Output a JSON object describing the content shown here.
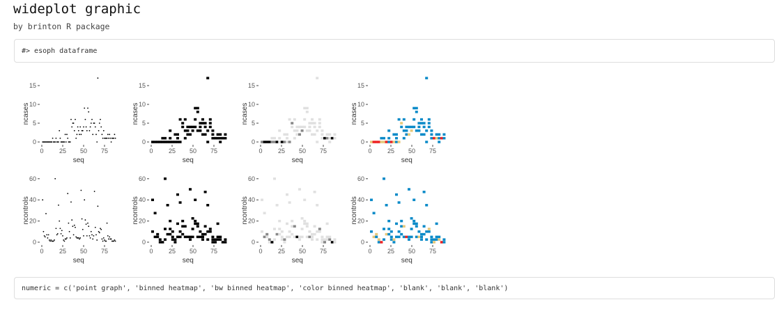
{
  "title": "wideplot graphic",
  "subtitle": "by brinton R package",
  "code_top": "#> esoph dataframe",
  "code_bottom": "numeric = c('point graph', 'binned heatmap', 'bw binned heatmap', 'color binned heatmap', 'blank', 'blank', 'blank')",
  "colors": {
    "point": "#000000",
    "bw_low": "#e0e0e0",
    "bw_mid": "#888888",
    "bw_high": "#000000",
    "color_low": "#0a8ac8",
    "color_mid": "#e6c87a",
    "color_high": "#ee2222"
  },
  "chart_data": [
    {
      "type": "scatter",
      "variant": "point graph",
      "xlabel": "seq",
      "ylabel": "ncases",
      "x_ticks": [
        "0",
        "25",
        "50",
        "75"
      ],
      "y_ticks": [
        "0",
        "5",
        "10",
        "15"
      ],
      "xlim": [
        0,
        88
      ],
      "ylim": [
        0,
        17
      ],
      "grid": false
    },
    {
      "type": "heatmap",
      "variant": "binned heatmap",
      "xlabel": "seq",
      "ylabel": "ncases",
      "x_ticks": [
        "0",
        "25",
        "50",
        "75"
      ],
      "y_ticks": [
        "0",
        "5",
        "10",
        "15"
      ]
    },
    {
      "type": "heatmap",
      "variant": "bw binned heatmap",
      "xlabel": "seq",
      "ylabel": "ncases",
      "x_ticks": [
        "0",
        "25",
        "50",
        "75"
      ],
      "y_ticks": [
        "0",
        "5",
        "10",
        "15"
      ]
    },
    {
      "type": "heatmap",
      "variant": "color binned heatmap",
      "xlabel": "seq",
      "ylabel": "ncases",
      "x_ticks": [
        "0",
        "25",
        "50",
        "75"
      ],
      "y_ticks": [
        "0",
        "5",
        "10",
        "15"
      ]
    },
    {
      "type": "scatter",
      "variant": "point graph",
      "xlabel": "seq",
      "ylabel": "ncontrols",
      "x_ticks": [
        "0",
        "25",
        "50",
        "75"
      ],
      "y_ticks": [
        "0",
        "20",
        "40",
        "60"
      ],
      "xlim": [
        0,
        88
      ],
      "ylim": [
        0,
        60
      ],
      "grid": false
    },
    {
      "type": "heatmap",
      "variant": "binned heatmap",
      "xlabel": "seq",
      "ylabel": "ncontrols",
      "x_ticks": [
        "0",
        "25",
        "50",
        "75"
      ],
      "y_ticks": [
        "0",
        "20",
        "40",
        "60"
      ]
    },
    {
      "type": "heatmap",
      "variant": "bw binned heatmap",
      "xlabel": "seq",
      "ylabel": "ncontrols",
      "x_ticks": [
        "0",
        "25",
        "50",
        "75"
      ],
      "y_ticks": [
        "0",
        "20",
        "40",
        "60"
      ]
    },
    {
      "type": "heatmap",
      "variant": "color binned heatmap",
      "xlabel": "seq",
      "ylabel": "ncontrols",
      "x_ticks": [
        "0",
        "25",
        "50",
        "75"
      ],
      "y_ticks": [
        "0",
        "20",
        "40",
        "60"
      ]
    }
  ],
  "esoph": {
    "ncases": [
      0,
      0,
      0,
      0,
      0,
      0,
      0,
      0,
      0,
      0,
      0,
      0,
      1,
      0,
      0,
      0,
      1,
      0,
      0,
      0,
      3,
      1,
      0,
      0,
      0,
      0,
      0,
      2,
      0,
      2,
      1,
      0,
      0,
      0,
      6,
      4,
      5,
      5,
      3,
      6,
      1,
      2,
      4,
      3,
      2,
      4,
      2,
      3,
      3,
      4,
      9,
      6,
      4,
      3,
      9,
      8,
      3,
      4,
      5,
      6,
      2,
      5,
      5,
      4,
      2,
      0,
      17,
      3,
      5,
      6,
      4,
      2,
      1,
      3,
      1,
      1,
      1,
      1,
      2,
      1,
      2,
      1,
      0,
      1,
      1,
      1,
      2,
      1
    ],
    "ncontrols": [
      40,
      10,
      6,
      5,
      27,
      7,
      4,
      7,
      2,
      1,
      2,
      1,
      1,
      1,
      2,
      60,
      13,
      7,
      8,
      35,
      20,
      13,
      8,
      11,
      6,
      2,
      1,
      3,
      3,
      4,
      46,
      18,
      10,
      4,
      38,
      21,
      15,
      7,
      16,
      14,
      5,
      4,
      4,
      4,
      3,
      4,
      49,
      22,
      12,
      6,
      40,
      21,
      17,
      6,
      18,
      15,
      6,
      4,
      10,
      7,
      3,
      6,
      48,
      14,
      7,
      2,
      34,
      10,
      9,
      13,
      12,
      3,
      1,
      4,
      2,
      1,
      1,
      18,
      6,
      3,
      5,
      3,
      3,
      1,
      1,
      1,
      2,
      1
    ]
  }
}
